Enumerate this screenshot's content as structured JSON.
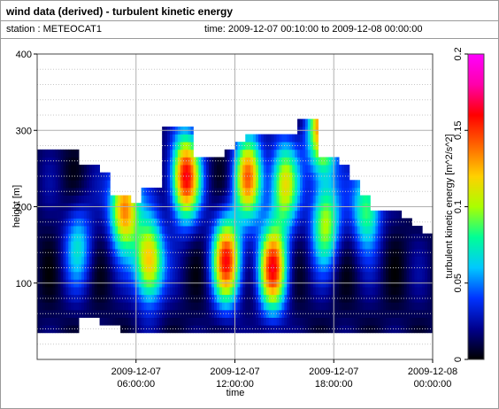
{
  "header": {
    "title": "wind data (derived) - turbulent kinetic energy",
    "station": "station : METEOCAT1",
    "time_range": "time: 2009-12-07 00:10:00 to 2009-12-08 00:00:00"
  },
  "chart_data": {
    "type": "heatmap",
    "title": "wind data (derived) - turbulent kinetic energy",
    "xlabel": "time",
    "ylabel": "height [m]",
    "colorbar_label": "turbulent kinetic energy [m^2/s^2]",
    "x_ticks": [
      {
        "hour": 6,
        "line1": "2009-12-07",
        "line2": "06:00:00"
      },
      {
        "hour": 12,
        "line1": "2009-12-07",
        "line2": "12:00:00"
      },
      {
        "hour": 18,
        "line1": "2009-12-07",
        "line2": "18:00:00"
      },
      {
        "hour": 24,
        "line1": "2009-12-08",
        "line2": "00:00:00"
      }
    ],
    "y_ticks": [
      100,
      200,
      300,
      400
    ],
    "ylim": [
      0,
      400
    ],
    "xlim_hours": [
      0,
      24
    ],
    "colorbar_ticks": [
      0,
      0.05,
      0.1,
      0.15,
      0.2
    ],
    "colorbar_range": [
      0,
      0.2
    ],
    "colormap": [
      "#000000",
      "#00008c",
      "#0033ff",
      "#00c8ff",
      "#00ff96",
      "#aaff00",
      "#ffd000",
      "#ff6600",
      "#ff0000",
      "#ff00aa",
      "#ff00ff"
    ],
    "grid": true,
    "bin_minutes": 20,
    "height_bin_m": 10,
    "profile_top_m": [
      275,
      275,
      275,
      275,
      255,
      255,
      245,
      215,
      215,
      200,
      225,
      225,
      300,
      305,
      305,
      265,
      265,
      265,
      275,
      285,
      295,
      295,
      295,
      295,
      295,
      315,
      315,
      265,
      265,
      255,
      235,
      215,
      195,
      195,
      195,
      185,
      175,
      165
    ],
    "profile_bottom_m": [
      35,
      35,
      35,
      35,
      55,
      55,
      45,
      45,
      35,
      35,
      35,
      35,
      35,
      35,
      35,
      35,
      35,
      35,
      35,
      35,
      35,
      35,
      35,
      35,
      35,
      35,
      35,
      35,
      35,
      35,
      35,
      35,
      35,
      35,
      35,
      35,
      35,
      35
    ],
    "peaks": [
      {
        "hour": 5.3,
        "height_m": 200,
        "value": 0.13
      },
      {
        "hour": 6.8,
        "height_m": 130,
        "value": 0.12
      },
      {
        "hour": 9.0,
        "height_m": 240,
        "value": 0.15
      },
      {
        "hour": 11.5,
        "height_m": 130,
        "value": 0.14
      },
      {
        "hour": 12.8,
        "height_m": 240,
        "value": 0.12
      },
      {
        "hour": 14.3,
        "height_m": 120,
        "value": 0.14
      },
      {
        "hour": 15.0,
        "height_m": 230,
        "value": 0.1
      },
      {
        "hour": 17.3,
        "height_m": 300,
        "value": 0.13
      },
      {
        "hour": 17.5,
        "height_m": 180,
        "value": 0.09
      },
      {
        "hour": 20.0,
        "height_m": 200,
        "value": 0.08
      },
      {
        "hour": 2.5,
        "height_m": 150,
        "value": 0.05
      }
    ]
  }
}
